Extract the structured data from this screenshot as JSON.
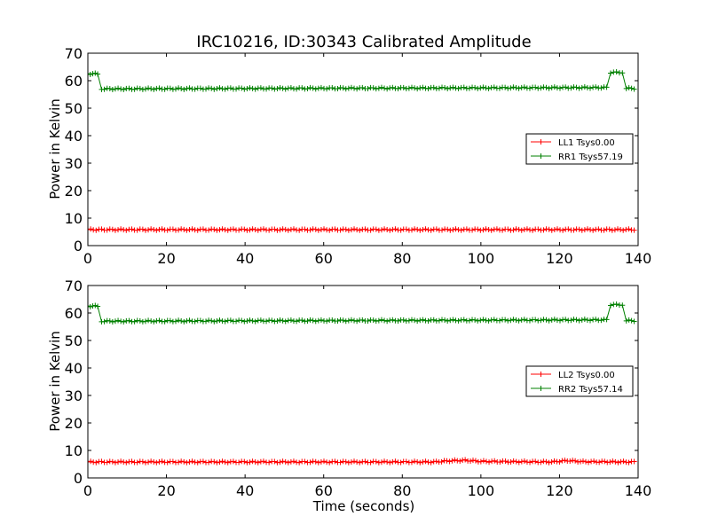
{
  "chart_data": [
    {
      "type": "line",
      "title": "IRC10216, ID:30343 Calibrated Amplitude",
      "xlabel": "",
      "ylabel": "Power in Kelvin",
      "xlim": [
        0,
        140
      ],
      "ylim": [
        0,
        70
      ],
      "xticks": [
        "0",
        "20",
        "40",
        "60",
        "80",
        "100",
        "120",
        "140"
      ],
      "yticks": [
        "0",
        "10",
        "20",
        "30",
        "40",
        "50",
        "60",
        "70"
      ],
      "grid": false,
      "legend_position": "right",
      "series": [
        {
          "name": "LL1 Tsys0.00",
          "color": "#ff0000",
          "marker": "plus",
          "segments": [
            {
              "x": [
                0,
                139
              ],
              "y": [
                5.8,
                5.8
              ]
            }
          ]
        },
        {
          "name": "RR1 Tsys57.19",
          "color": "#008000",
          "marker": "plus",
          "segments": [
            {
              "x": [
                0,
                2.5
              ],
              "y": [
                62.5,
                62.5
              ]
            },
            {
              "x": [
                3.5,
                132
              ],
              "y": [
                57,
                57.5
              ]
            },
            {
              "x": [
                133,
                136
              ],
              "y": [
                63,
                63
              ]
            },
            {
              "x": [
                137,
                139
              ],
              "y": [
                57.2,
                57.2
              ]
            }
          ]
        }
      ]
    },
    {
      "type": "line",
      "title": "",
      "xlabel": "Time (seconds)",
      "ylabel": "Power in Kelvin",
      "xlim": [
        0,
        140
      ],
      "ylim": [
        0,
        70
      ],
      "xticks": [
        "0",
        "20",
        "40",
        "60",
        "80",
        "100",
        "120",
        "140"
      ],
      "yticks": [
        "0",
        "10",
        "20",
        "30",
        "40",
        "50",
        "60",
        "70"
      ],
      "grid": false,
      "legend_position": "right",
      "series": [
        {
          "name": "LL2 Tsys0.00",
          "color": "#ff0000",
          "marker": "plus",
          "segments": [
            {
              "x": [
                0,
                88,
                92,
                96,
                100,
                118,
                122,
                126,
                139
              ],
              "y": [
                5.8,
                5.8,
                6.2,
                6.4,
                6.0,
                5.8,
                6.3,
                5.9,
                5.8
              ]
            }
          ]
        },
        {
          "name": "RR2 Tsys57.14",
          "color": "#008000",
          "marker": "plus",
          "segments": [
            {
              "x": [
                0,
                2.5
              ],
              "y": [
                62.5,
                62.5
              ]
            },
            {
              "x": [
                3.5,
                132
              ],
              "y": [
                57,
                57.5
              ]
            },
            {
              "x": [
                133,
                136
              ],
              "y": [
                63,
                63
              ]
            },
            {
              "x": [
                137,
                139
              ],
              "y": [
                57.2,
                57.2
              ]
            }
          ]
        }
      ]
    }
  ]
}
